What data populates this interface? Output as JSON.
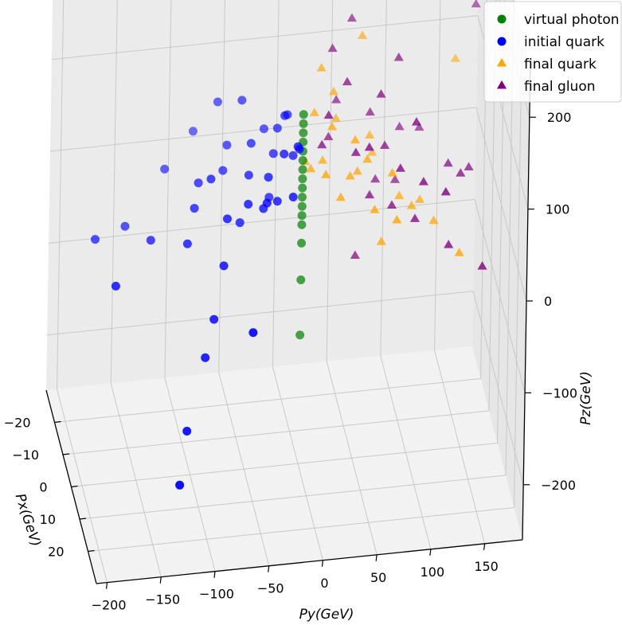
{
  "chart_data": {
    "type": "scatter",
    "projection": "3d",
    "xlabel": "P_x(GeV)",
    "ylabel": "P_y(GeV)",
    "zlabel": "P_z(GeV)",
    "x_ticks": [
      -20,
      -10,
      0,
      10,
      20
    ],
    "y_ticks": [
      -200,
      -150,
      -100,
      -50,
      0,
      50,
      100,
      150
    ],
    "z_ticks": [
      -200,
      -100,
      0,
      100,
      200
    ],
    "xlim": [
      -30,
      30
    ],
    "ylim": [
      -210,
      185
    ],
    "zlim": [
      -260,
      260
    ],
    "grid": true,
    "legend_position": "top-right",
    "series": [
      {
        "name": "virtual photon",
        "marker": "circle",
        "color": "#008000",
        "points": [
          [
            0,
            0,
            0
          ],
          [
            0,
            0,
            10
          ],
          [
            0,
            0,
            20
          ],
          [
            0,
            0,
            30
          ],
          [
            0,
            0,
            40
          ],
          [
            0,
            0,
            50
          ],
          [
            0,
            0,
            60
          ],
          [
            0,
            0,
            70
          ],
          [
            0,
            0,
            80
          ],
          [
            0,
            0,
            90
          ],
          [
            0,
            0,
            100
          ],
          [
            0,
            0,
            110
          ],
          [
            0,
            0,
            120
          ],
          [
            0,
            0,
            -20
          ],
          [
            0,
            0,
            -60
          ],
          [
            0,
            0,
            -120
          ]
        ]
      },
      {
        "name": "initial quark",
        "marker": "circle",
        "color": "#0000ff",
        "points": [
          [
            -2,
            -190,
            0
          ],
          [
            10,
            -180,
            -10
          ],
          [
            -5,
            -160,
            0
          ],
          [
            0,
            -140,
            0
          ],
          [
            -10,
            -120,
            40
          ],
          [
            0,
            -100,
            30
          ],
          [
            5,
            -110,
            10
          ],
          [
            -15,
            -90,
            60
          ],
          [
            10,
            -80,
            0
          ],
          [
            20,
            -60,
            -40
          ],
          [
            -5,
            -70,
            50
          ],
          [
            0,
            -50,
            60
          ],
          [
            5,
            -40,
            40
          ],
          [
            -8,
            -30,
            80
          ],
          [
            3,
            -20,
            90
          ],
          [
            -3,
            -25,
            70
          ],
          [
            8,
            -15,
            60
          ],
          [
            -6,
            -10,
            100
          ],
          [
            2,
            -5,
            90
          ],
          [
            4,
            -35,
            70
          ],
          [
            -4,
            -45,
            80
          ],
          [
            6,
            -55,
            50
          ],
          [
            -7,
            -65,
            70
          ],
          [
            7,
            -75,
            40
          ],
          [
            0,
            -85,
            60
          ],
          [
            -2,
            -95,
            50
          ],
          [
            3,
            -60,
            20
          ],
          [
            -1,
            -30,
            30
          ],
          [
            1,
            -10,
            80
          ],
          [
            15,
            -100,
            -80
          ],
          [
            20,
            -120,
            -140
          ],
          [
            25,
            -130,
            -180
          ],
          [
            12,
            -90,
            -50
          ],
          [
            -12,
            -70,
            100
          ],
          [
            -9,
            -50,
            110
          ],
          [
            9,
            -40,
            60
          ],
          [
            -3,
            -15,
            110
          ],
          [
            4,
            -8,
            100
          ],
          [
            -5,
            -20,
            90
          ],
          [
            6,
            -28,
            50
          ]
        ]
      },
      {
        "name": "final quark",
        "marker": "triangle",
        "color": "#ffa500",
        "points": [
          [
            -10,
            40,
            220
          ],
          [
            -8,
            60,
            170
          ],
          [
            -5,
            20,
            150
          ],
          [
            -3,
            30,
            130
          ],
          [
            0,
            10,
            120
          ],
          [
            2,
            25,
            110
          ],
          [
            4,
            45,
            100
          ],
          [
            -6,
            35,
            90
          ],
          [
            6,
            55,
            85
          ],
          [
            8,
            15,
            80
          ],
          [
            -4,
            65,
            75
          ],
          [
            3,
            5,
            70
          ],
          [
            5,
            40,
            65
          ],
          [
            -2,
            20,
            60
          ],
          [
            1,
            50,
            55
          ],
          [
            7,
            30,
            50
          ],
          [
            -7,
            70,
            45
          ],
          [
            9,
            60,
            40
          ],
          [
            -9,
            10,
            35
          ],
          [
            10,
            80,
            30
          ],
          [
            0,
            90,
            20
          ],
          [
            2,
            100,
            15
          ],
          [
            -1,
            110,
            10
          ],
          [
            3,
            120,
            0
          ],
          [
            -12,
            150,
            120
          ],
          [
            -15,
            170,
            200
          ],
          [
            -20,
            180,
            380
          ],
          [
            5,
            70,
            -10
          ],
          [
            8,
            140,
            -20
          ],
          [
            4,
            80,
            60
          ]
        ]
      },
      {
        "name": "final gluon",
        "marker": "triangle",
        "color": "#800080",
        "points": [
          [
            -20,
            10,
            280
          ],
          [
            -15,
            60,
            260
          ],
          [
            -10,
            80,
            220
          ],
          [
            -8,
            50,
            190
          ],
          [
            -5,
            30,
            170
          ],
          [
            -3,
            90,
            160
          ],
          [
            0,
            40,
            150
          ],
          [
            2,
            70,
            140
          ],
          [
            4,
            20,
            130
          ],
          [
            6,
            100,
            120
          ],
          [
            -6,
            35,
            110
          ],
          [
            8,
            55,
            105
          ],
          [
            -4,
            65,
            100
          ],
          [
            3,
            15,
            95
          ],
          [
            5,
            45,
            90
          ],
          [
            -2,
            25,
            85
          ],
          [
            1,
            75,
            80
          ],
          [
            7,
            85,
            75
          ],
          [
            -7,
            95,
            70
          ],
          [
            9,
            105,
            65
          ],
          [
            -9,
            115,
            60
          ],
          [
            10,
            125,
            55
          ],
          [
            0,
            135,
            50
          ],
          [
            2,
            145,
            45
          ],
          [
            -1,
            155,
            40
          ],
          [
            3,
            60,
            35
          ],
          [
            -3,
            70,
            30
          ],
          [
            4,
            80,
            25
          ],
          [
            -5,
            90,
            20
          ],
          [
            6,
            100,
            15
          ],
          [
            -12,
            150,
            200
          ],
          [
            -14,
            170,
            170
          ],
          [
            8,
            130,
            -10
          ],
          [
            10,
            160,
            -30
          ],
          [
            0,
            50,
            -40
          ]
        ]
      }
    ]
  }
}
